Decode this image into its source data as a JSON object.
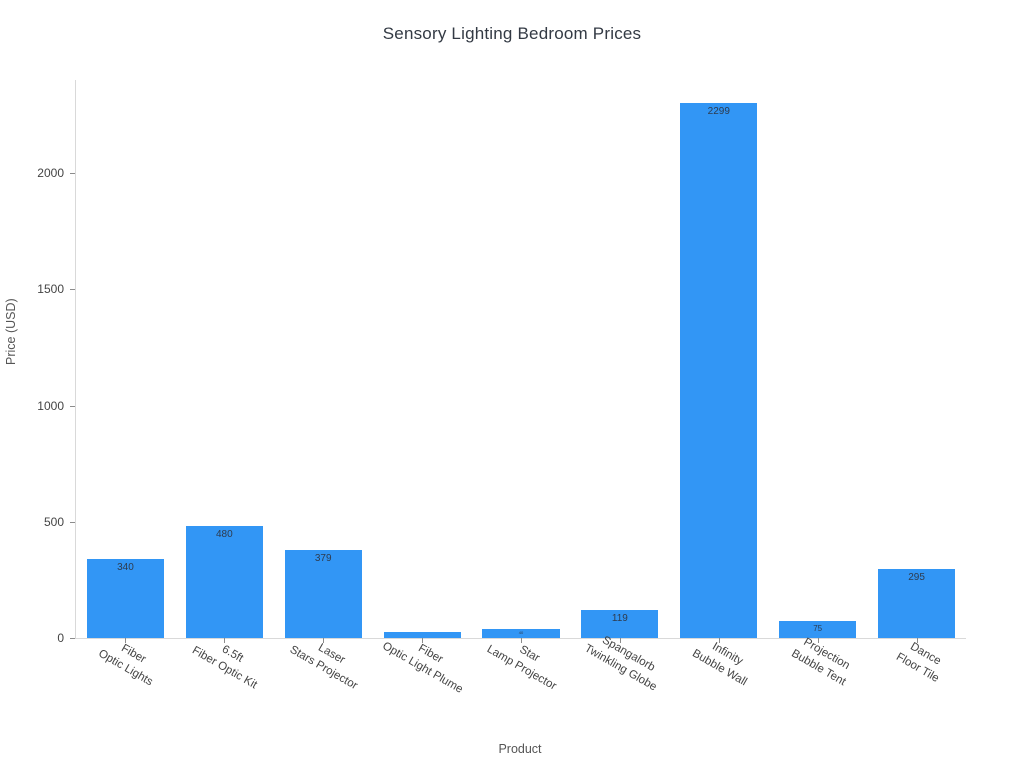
{
  "chart_data": {
    "type": "bar",
    "title": "Sensory Lighting Bedroom Prices",
    "xlabel": "Product",
    "ylabel": "Price (USD)",
    "categories": [
      [
        "Fiber",
        "Optic Lights"
      ],
      [
        "6.5ft",
        "Fiber Optic Kit"
      ],
      [
        "Laser",
        "Stars Projector"
      ],
      [
        "Fiber",
        "Optic Light Plume"
      ],
      [
        "Star",
        "Lamp Projector"
      ],
      [
        "Spangalorb",
        "Twinkling Globe"
      ],
      [
        "Infinity",
        "Bubble Wall"
      ],
      [
        "Projection",
        "Bubble Tent"
      ],
      [
        "Dance",
        "Floor Tile"
      ]
    ],
    "values": [
      340,
      480,
      379,
      25,
      40,
      119,
      2299,
      75,
      295
    ],
    "bar_labels": [
      "340",
      "480",
      "379",
      "",
      "40",
      "119",
      "2299",
      "75",
      "295"
    ],
    "bar_label_font_px": [
      10,
      10,
      10,
      0,
      4,
      10,
      10,
      8,
      10
    ],
    "yticks": [
      0,
      500,
      1000,
      1500,
      2000
    ],
    "ylim": [
      0,
      2400
    ],
    "bar_color": "#3296f5",
    "grid": false,
    "legend": "none"
  }
}
